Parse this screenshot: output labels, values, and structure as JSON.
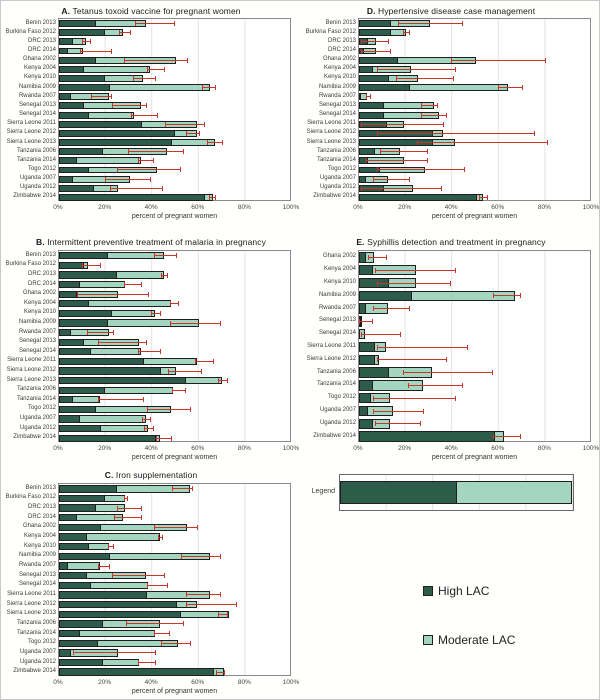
{
  "colors": {
    "high": "#2d5c4a",
    "moderate": "#a3d5c0",
    "error": "#c53727"
  },
  "axis": {
    "ticks": [
      "0%",
      "20%",
      "40%",
      "60%",
      "80%",
      "100%"
    ],
    "label": "percent of pregnant women",
    "xlim": [
      0,
      100
    ]
  },
  "legend": {
    "label": "Legend",
    "sample": {
      "high_pct": 50,
      "moderate_pct": 50
    },
    "items": [
      {
        "name": "high",
        "label": "High LAC"
      },
      {
        "name": "moderate",
        "label": "Moderate LAC"
      }
    ]
  },
  "chart_data": [
    {
      "id": "A",
      "type": "bar",
      "title_prefix": "A.",
      "title": "Tetanus toxoid vaccine for pregnant women",
      "rows": [
        {
          "label": "Benin 2013",
          "high": 16,
          "moderate": 22,
          "err_lo": 33,
          "err_hi": 50
        },
        {
          "label": "Burkina Faso 2012",
          "high": 20,
          "moderate": 8,
          "err_lo": 26,
          "err_hi": 31
        },
        {
          "label": "DRC 2013",
          "high": 6,
          "moderate": 6,
          "err_lo": 10,
          "err_hi": 14
        },
        {
          "label": "DRC 2014",
          "high": 4,
          "moderate": 7,
          "err_lo": 9,
          "err_hi": 23
        },
        {
          "label": "Ghana 2002",
          "high": 16,
          "moderate": 35,
          "err_lo": 28,
          "err_hi": 56
        },
        {
          "label": "Kenya 2004",
          "high": 11,
          "moderate": 29,
          "err_lo": 38,
          "err_hi": 46
        },
        {
          "label": "Kenya 2010",
          "high": 20,
          "moderate": 17,
          "err_lo": 32,
          "err_hi": 42
        },
        {
          "label": "Namibia 2009",
          "high": 22,
          "moderate": 44,
          "err_lo": 62,
          "err_hi": 68
        },
        {
          "label": "Rwanda 2007",
          "high": 5,
          "moderate": 17,
          "err_lo": 14,
          "err_hi": 23
        },
        {
          "label": "Senegal 2013",
          "high": 11,
          "moderate": 25,
          "err_lo": 23,
          "err_hi": 38
        },
        {
          "label": "Senegal 2014",
          "high": 13,
          "moderate": 20,
          "err_lo": 31,
          "err_hi": 43
        },
        {
          "label": "Sierra Leone 2011",
          "high": 36,
          "moderate": 24,
          "err_lo": 46,
          "err_hi": 63
        },
        {
          "label": "Sierra Leone 2012",
          "high": 50,
          "moderate": 10,
          "err_lo": 55,
          "err_hi": 61
        },
        {
          "label": "Sierra Leone 2013",
          "high": 49,
          "moderate": 19,
          "err_lo": 64,
          "err_hi": 71
        },
        {
          "label": "Tanzania 2006",
          "high": 19,
          "moderate": 28,
          "err_lo": 30,
          "err_hi": 54
        },
        {
          "label": "Tanzania 2014",
          "high": 8,
          "moderate": 28,
          "err_lo": 34,
          "err_hi": 41
        },
        {
          "label": "Togo 2012",
          "high": 13,
          "moderate": 30,
          "err_lo": 25,
          "err_hi": 53
        },
        {
          "label": "Uganda 2007",
          "high": 6,
          "moderate": 25,
          "err_lo": 20,
          "err_hi": 40
        },
        {
          "label": "Uganda 2012",
          "high": 15,
          "moderate": 11,
          "err_lo": 22,
          "err_hi": 45
        },
        {
          "label": "Zimbabwe 2014",
          "high": 63,
          "moderate": 4,
          "err_lo": 65,
          "err_hi": 68
        }
      ]
    },
    {
      "id": "B",
      "type": "bar",
      "title_prefix": "B.",
      "title": "Intermittent preventive treatment of malaria in pregnancy",
      "rows": [
        {
          "label": "Benin 2013",
          "high": 21,
          "moderate": 25,
          "err_lo": 41,
          "err_hi": 51
        },
        {
          "label": "Burkina Faso 2012",
          "high": 11,
          "moderate": 2,
          "err_lo": 10,
          "err_hi": 18
        },
        {
          "label": "DRC 2013",
          "high": 25,
          "moderate": 21,
          "err_lo": 44,
          "err_hi": 47
        },
        {
          "label": "DRC 2014",
          "high": 9,
          "moderate": 20,
          "err_lo": 28,
          "err_hi": 36
        },
        {
          "label": "Ghana 2002",
          "high": 8,
          "moderate": 18,
          "err_lo": 8,
          "err_hi": 39
        },
        {
          "label": "Kenya 2004",
          "high": 13,
          "moderate": 36,
          "err_lo": 48,
          "err_hi": 52
        },
        {
          "label": "Kenya 2010",
          "high": 23,
          "moderate": 19,
          "err_lo": 40,
          "err_hi": 44
        },
        {
          "label": "Namibia 2009",
          "high": 21,
          "moderate": 40,
          "err_lo": 48,
          "err_hi": 70
        },
        {
          "label": "Rwanda 2007",
          "high": 5,
          "moderate": 17,
          "err_lo": 12,
          "err_hi": 24
        },
        {
          "label": "Senegal 2013",
          "high": 11,
          "moderate": 24,
          "err_lo": 17,
          "err_hi": 38
        },
        {
          "label": "Senegal 2014",
          "high": 14,
          "moderate": 22,
          "err_lo": 34,
          "err_hi": 44
        },
        {
          "label": "Sierra Leone 2011",
          "high": 37,
          "moderate": 23,
          "err_lo": 59,
          "err_hi": 67
        },
        {
          "label": "Sierra Leone 2012",
          "high": 44,
          "moderate": 7,
          "err_lo": 47,
          "err_hi": 62
        },
        {
          "label": "Sierra Leone 2013",
          "high": 55,
          "moderate": 16,
          "err_lo": 69,
          "err_hi": 73
        },
        {
          "label": "Tanzania 2006",
          "high": 20,
          "moderate": 30,
          "err_lo": 49,
          "err_hi": 55
        },
        {
          "label": "Tanzania 2014",
          "high": 6,
          "moderate": 12,
          "err_lo": 17,
          "err_hi": 37
        },
        {
          "label": "Togo 2012",
          "high": 16,
          "moderate": 33,
          "err_lo": 38,
          "err_hi": 57
        },
        {
          "label": "Uganda 2007",
          "high": 9,
          "moderate": 29,
          "err_lo": 36,
          "err_hi": 40
        },
        {
          "label": "Uganda 2012",
          "high": 18,
          "moderate": 21,
          "err_lo": 37,
          "err_hi": 41
        },
        {
          "label": "Zimbabwe 2014",
          "high": 42,
          "moderate": 2,
          "err_lo": 42,
          "err_hi": 49
        }
      ]
    },
    {
      "id": "C",
      "type": "bar",
      "title_prefix": "C.",
      "title": "Iron supplementation",
      "rows": [
        {
          "label": "Benin 2013",
          "high": 25,
          "moderate": 32,
          "err_lo": 49,
          "err_hi": 58
        },
        {
          "label": "Burkina Faso 2012",
          "high": 20,
          "moderate": 9,
          "err_lo": 28,
          "err_hi": 30
        },
        {
          "label": "DRC 2013",
          "high": 16,
          "moderate": 13,
          "err_lo": 25,
          "err_hi": 36
        },
        {
          "label": "DRC 2014",
          "high": 8,
          "moderate": 20,
          "err_lo": 24,
          "err_hi": 36
        },
        {
          "label": "Ghana 2002",
          "high": 18,
          "moderate": 38,
          "err_lo": 41,
          "err_hi": 60
        },
        {
          "label": "Kenya 2004",
          "high": 12,
          "moderate": 32,
          "err_lo": 43,
          "err_hi": 45
        },
        {
          "label": "Kenya 2010",
          "high": 13,
          "moderate": 9,
          "err_lo": 21,
          "err_hi": 24
        },
        {
          "label": "Namibia 2009",
          "high": 22,
          "moderate": 44,
          "err_lo": 53,
          "err_hi": 70
        },
        {
          "label": "Rwanda 2007",
          "high": 4,
          "moderate": 14,
          "err_lo": 17,
          "err_hi": 22
        },
        {
          "label": "Senegal 2013",
          "high": 12,
          "moderate": 26,
          "err_lo": 23,
          "err_hi": 46
        },
        {
          "label": "Senegal 2014",
          "high": 14,
          "moderate": 25,
          "err_lo": 38,
          "err_hi": 47
        },
        {
          "label": "Sierra Leone 2011",
          "high": 38,
          "moderate": 28,
          "err_lo": 55,
          "err_hi": 70
        },
        {
          "label": "Sierra Leone 2012",
          "high": 51,
          "moderate": 9,
          "err_lo": 55,
          "err_hi": 77
        },
        {
          "label": "Sierra Leone 2013",
          "high": 53,
          "moderate": 21,
          "err_lo": 69,
          "err_hi": 73
        },
        {
          "label": "Tanzania 2006",
          "high": 19,
          "moderate": 25,
          "err_lo": 29,
          "err_hi": 54
        },
        {
          "label": "Tanzania 2014",
          "high": 9,
          "moderate": 33,
          "err_lo": 41,
          "err_hi": 48
        },
        {
          "label": "Togo 2012",
          "high": 17,
          "moderate": 35,
          "err_lo": 44,
          "err_hi": 57
        },
        {
          "label": "Uganda 2007",
          "high": 5,
          "moderate": 21,
          "err_lo": 6,
          "err_hi": 42
        },
        {
          "label": "Uganda 2012",
          "high": 19,
          "moderate": 16,
          "err_lo": 34,
          "err_hi": 42
        },
        {
          "label": "Zimbabwe 2014",
          "high": 67,
          "moderate": 5,
          "err_lo": 68,
          "err_hi": 72
        }
      ]
    },
    {
      "id": "D",
      "type": "bar",
      "title_prefix": "D.",
      "title": "Hypertensive disease case management",
      "rows": [
        {
          "label": "Benin 2013",
          "high": 14,
          "moderate": 17,
          "err_lo": 17,
          "err_hi": 45
        },
        {
          "label": "Burkina Faso 2012",
          "high": 14,
          "moderate": 7,
          "err_lo": 19,
          "err_hi": 22
        },
        {
          "label": "DRC 2013",
          "high": 4,
          "moderate": 4,
          "err_lo": 1,
          "err_hi": 13
        },
        {
          "label": "DRC 2014",
          "high": 2,
          "moderate": 6,
          "err_lo": 1,
          "err_hi": 14
        },
        {
          "label": "Ghana 2002",
          "high": 17,
          "moderate": 34,
          "err_lo": 40,
          "err_hi": 81
        },
        {
          "label": "Kenya 2004",
          "high": 6,
          "moderate": 17,
          "err_lo": 8,
          "err_hi": 42
        },
        {
          "label": "Kenya 2010",
          "high": 13,
          "moderate": 13,
          "err_lo": 16,
          "err_hi": 41
        },
        {
          "label": "Namibia 2009",
          "high": 22,
          "moderate": 43,
          "err_lo": 60,
          "err_hi": 71
        },
        {
          "label": "Rwanda 2007",
          "high": 1,
          "moderate": 3,
          "err_lo": 3,
          "err_hi": 5
        },
        {
          "label": "Senegal 2013",
          "high": 11,
          "moderate": 22,
          "err_lo": 27,
          "err_hi": 34
        },
        {
          "label": "Senegal 2014",
          "high": 11,
          "moderate": 24,
          "err_lo": 27,
          "err_hi": 38
        },
        {
          "label": "Sierra Leone 2011",
          "high": 12,
          "moderate": 8,
          "err_lo": 1,
          "err_hi": 37
        },
        {
          "label": "Sierra Leone 2012",
          "high": 32,
          "moderate": 5,
          "err_lo": 8,
          "err_hi": 76
        },
        {
          "label": "Sierra Leone 2013",
          "high": 32,
          "moderate": 10,
          "err_lo": 25,
          "err_hi": 82
        },
        {
          "label": "Tanzania 2006",
          "high": 7,
          "moderate": 11,
          "err_lo": 9,
          "err_hi": 30
        },
        {
          "label": "Tanzania 2014",
          "high": 4,
          "moderate": 16,
          "err_lo": 3,
          "err_hi": 30
        },
        {
          "label": "Togo 2012",
          "high": 9,
          "moderate": 20,
          "err_lo": 8,
          "err_hi": 46
        },
        {
          "label": "Uganda 2007",
          "high": 3,
          "moderate": 10,
          "err_lo": 6,
          "err_hi": 22
        },
        {
          "label": "Uganda 2012",
          "high": 11,
          "moderate": 13,
          "err_lo": 1,
          "err_hi": 36
        },
        {
          "label": "Zimbabwe 2014",
          "high": 51,
          "moderate": 3,
          "err_lo": 52,
          "err_hi": 56
        }
      ]
    },
    {
      "id": "E",
      "type": "bar",
      "title_prefix": "E.",
      "title": "Syphillis detection and treatment in pregnancy",
      "rows": [
        {
          "label": "Ghana 2002",
          "high": 3,
          "moderate": 4,
          "err_lo": 4,
          "err_hi": 12
        },
        {
          "label": "Kenya 2004",
          "high": 6,
          "moderate": 19,
          "err_lo": 7,
          "err_hi": 42
        },
        {
          "label": "Kenya 2010",
          "high": 13,
          "moderate": 12,
          "err_lo": 8,
          "err_hi": 40
        },
        {
          "label": "Namibia 2009",
          "high": 23,
          "moderate": 45,
          "err_lo": 58,
          "err_hi": 70
        },
        {
          "label": "Rwanda 2007",
          "high": 3,
          "moderate": 10,
          "err_lo": 6,
          "err_hi": 22
        },
        {
          "label": "Senegal 2013",
          "high": 0.7,
          "moderate": 0.8,
          "err_lo": 0,
          "err_hi": 6
        },
        {
          "label": "Senegal 2014",
          "high": 0.5,
          "moderate": 2.5,
          "err_lo": 1,
          "err_hi": 18
        },
        {
          "label": "Sierra Leone 2011",
          "high": 7,
          "moderate": 5,
          "err_lo": 8,
          "err_hi": 47
        },
        {
          "label": "Sierra Leone 2012",
          "high": 7,
          "moderate": 2,
          "err_lo": 8,
          "err_hi": 38
        },
        {
          "label": "Tanzania 2006",
          "high": 13,
          "moderate": 19,
          "err_lo": 19,
          "err_hi": 58
        },
        {
          "label": "Tanzania 2014",
          "high": 6,
          "moderate": 22,
          "err_lo": 21,
          "err_hi": 45
        },
        {
          "label": "Togo 2012",
          "high": 5,
          "moderate": 9,
          "err_lo": 6,
          "err_hi": 42
        },
        {
          "label": "Uganda 2007",
          "high": 4,
          "moderate": 11,
          "err_lo": 6,
          "err_hi": 28
        },
        {
          "label": "Uganda 2012",
          "high": 6,
          "moderate": 8,
          "err_lo": 7,
          "err_hi": 27
        },
        {
          "label": "Zimbabwe 2014",
          "high": 59,
          "moderate": 4,
          "err_lo": 58,
          "err_hi": 70
        }
      ]
    }
  ]
}
